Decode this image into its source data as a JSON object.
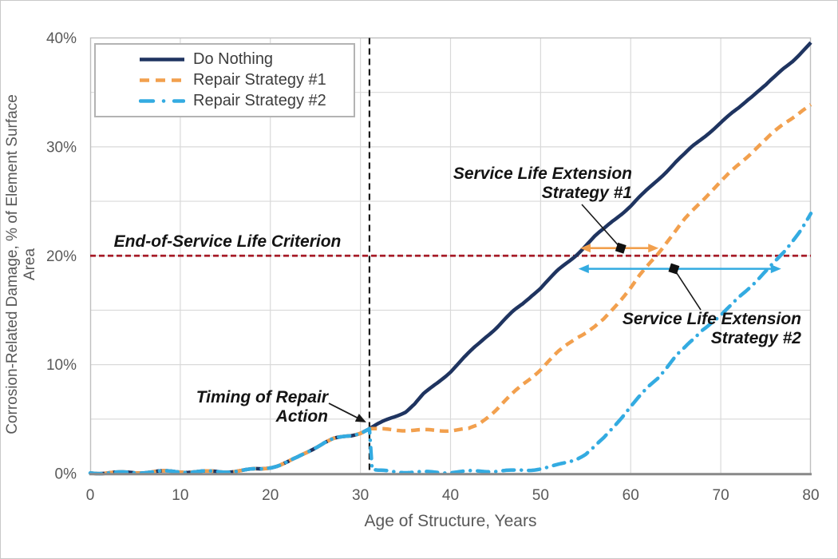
{
  "chart_data": {
    "type": "line",
    "xlabel": "Age of Structure, Years",
    "ylabel": "Corrosion-Related Damage, % of Element Surface Area",
    "xlim": [
      0,
      80
    ],
    "ylim": [
      0,
      40
    ],
    "xticks": [
      0,
      10,
      20,
      30,
      40,
      50,
      60,
      70,
      80
    ],
    "yticks": [
      [
        0,
        "0%"
      ],
      [
        10,
        "10%"
      ],
      [
        20,
        "20%"
      ],
      [
        30,
        "30%"
      ],
      [
        40,
        "40%"
      ]
    ],
    "grid": {
      "x_step_years": 10,
      "y_step_pct": 5
    },
    "legend_position": "top-left",
    "colors": {
      "grid": "#d9d9d9",
      "border": "#bfbfbf",
      "axis": "#8a8a8a",
      "tick_text": "#595959",
      "legend_text": "#3d3d3d",
      "annotation_text": "#141414",
      "background": "#ffffff"
    },
    "series": [
      {
        "name": "Do Nothing",
        "color": "#1f3460",
        "style": "solid",
        "points": [
          [
            0,
            0.1
          ],
          [
            3,
            0.1
          ],
          [
            6,
            0.12
          ],
          [
            9,
            0.15
          ],
          [
            12,
            0.18
          ],
          [
            15,
            0.22
          ],
          [
            17,
            0.28
          ],
          [
            19,
            0.4
          ],
          [
            20,
            0.55
          ],
          [
            21,
            0.75
          ],
          [
            22,
            1.05
          ],
          [
            23,
            1.45
          ],
          [
            24,
            1.95
          ],
          [
            25,
            2.45
          ],
          [
            26,
            2.9
          ],
          [
            27,
            3.2
          ],
          [
            28,
            3.35
          ],
          [
            29,
            3.5
          ],
          [
            30,
            3.75
          ],
          [
            31,
            4.1
          ],
          [
            33,
            4.9
          ],
          [
            35,
            5.7
          ],
          [
            36,
            6.4
          ],
          [
            37,
            7.3
          ],
          [
            38,
            8.0
          ],
          [
            39,
            8.7
          ],
          [
            40,
            9.4
          ],
          [
            41,
            10.2
          ],
          [
            42,
            11.0
          ],
          [
            43,
            11.8
          ],
          [
            44,
            12.6
          ],
          [
            45,
            13.3
          ],
          [
            46,
            14.1
          ],
          [
            47,
            14.9
          ],
          [
            48,
            15.6
          ],
          [
            49,
            16.4
          ],
          [
            50,
            17.1
          ],
          [
            51,
            17.9
          ],
          [
            52,
            18.7
          ],
          [
            53,
            19.4
          ],
          [
            54,
            20.1
          ],
          [
            55,
            20.9
          ],
          [
            56,
            21.7
          ],
          [
            57,
            22.4
          ],
          [
            58,
            23.2
          ],
          [
            59,
            23.9
          ],
          [
            60,
            24.6
          ],
          [
            61,
            25.4
          ],
          [
            62,
            26.2
          ],
          [
            63,
            27.0
          ],
          [
            64,
            27.8
          ],
          [
            65,
            28.6
          ],
          [
            66,
            29.3
          ],
          [
            67,
            30.1
          ],
          [
            68,
            30.8
          ],
          [
            69,
            31.5
          ],
          [
            70,
            32.2
          ],
          [
            71,
            32.9
          ],
          [
            72,
            33.6
          ],
          [
            73,
            34.4
          ],
          [
            74,
            35.1
          ],
          [
            75,
            35.7
          ],
          [
            76,
            36.4
          ],
          [
            77,
            37.2
          ],
          [
            78,
            37.9
          ],
          [
            79,
            38.7
          ],
          [
            80,
            39.5
          ]
        ]
      },
      {
        "name": "Repair Strategy #1",
        "color": "#f2a04e",
        "style": "dashed",
        "points": [
          [
            0,
            0.1
          ],
          [
            3,
            0.1
          ],
          [
            6,
            0.12
          ],
          [
            9,
            0.15
          ],
          [
            12,
            0.18
          ],
          [
            15,
            0.22
          ],
          [
            17,
            0.28
          ],
          [
            19,
            0.4
          ],
          [
            20,
            0.55
          ],
          [
            21,
            0.75
          ],
          [
            22,
            1.05
          ],
          [
            23,
            1.45
          ],
          [
            24,
            1.95
          ],
          [
            25,
            2.45
          ],
          [
            26,
            2.9
          ],
          [
            27,
            3.2
          ],
          [
            28,
            3.35
          ],
          [
            29,
            3.5
          ],
          [
            30,
            3.75
          ],
          [
            31,
            4.1
          ],
          [
            32,
            4.0
          ],
          [
            36,
            4.0
          ],
          [
            40,
            4.0
          ],
          [
            42,
            4.05
          ],
          [
            43,
            4.4
          ],
          [
            44,
            5.1
          ],
          [
            45,
            5.8
          ],
          [
            46,
            6.6
          ],
          [
            47,
            7.4
          ],
          [
            48,
            8.2
          ],
          [
            49,
            8.9
          ],
          [
            50,
            9.6
          ],
          [
            51,
            10.4
          ],
          [
            52,
            11.2
          ],
          [
            53,
            11.9
          ],
          [
            54,
            12.5
          ],
          [
            55,
            12.9
          ],
          [
            56,
            13.4
          ],
          [
            57,
            14.1
          ],
          [
            58,
            15.1
          ],
          [
            59,
            16.1
          ],
          [
            60,
            17.1
          ],
          [
            61,
            18.2
          ],
          [
            62,
            19.2
          ],
          [
            63,
            20.2
          ],
          [
            64,
            21.3
          ],
          [
            65,
            22.3
          ],
          [
            66,
            23.3
          ],
          [
            67,
            24.2
          ],
          [
            68,
            25.1
          ],
          [
            69,
            26.0
          ],
          [
            70,
            26.8
          ],
          [
            71,
            27.6
          ],
          [
            72,
            28.4
          ],
          [
            73,
            29.2
          ],
          [
            74,
            30.0
          ],
          [
            75,
            30.7
          ],
          [
            76,
            31.4
          ],
          [
            77,
            32.1
          ],
          [
            78,
            32.7
          ],
          [
            79,
            33.3
          ],
          [
            80,
            33.8
          ]
        ]
      },
      {
        "name": "Repair Strategy #2",
        "color": "#33abe1",
        "style": "dashdot",
        "points": [
          [
            0,
            0.1
          ],
          [
            3,
            0.1
          ],
          [
            6,
            0.12
          ],
          [
            9,
            0.15
          ],
          [
            12,
            0.18
          ],
          [
            15,
            0.22
          ],
          [
            17,
            0.28
          ],
          [
            19,
            0.4
          ],
          [
            20,
            0.55
          ],
          [
            21,
            0.75
          ],
          [
            22,
            1.05
          ],
          [
            23,
            1.45
          ],
          [
            24,
            1.95
          ],
          [
            25,
            2.45
          ],
          [
            26,
            2.9
          ],
          [
            27,
            3.2
          ],
          [
            28,
            3.35
          ],
          [
            29,
            3.5
          ],
          [
            30,
            3.75
          ],
          [
            31,
            4.1
          ],
          [
            31.3,
            0.3
          ],
          [
            32,
            0.2
          ],
          [
            35,
            0.15
          ],
          [
            38,
            0.15
          ],
          [
            41,
            0.15
          ],
          [
            44,
            0.2
          ],
          [
            47,
            0.25
          ],
          [
            49,
            0.4
          ],
          [
            51,
            0.6
          ],
          [
            52,
            0.8
          ],
          [
            53,
            1.05
          ],
          [
            54,
            1.35
          ],
          [
            55,
            1.75
          ],
          [
            56,
            2.4
          ],
          [
            57,
            3.2
          ],
          [
            58,
            4.2
          ],
          [
            59,
            5.2
          ],
          [
            60,
            6.2
          ],
          [
            61,
            7.1
          ],
          [
            62,
            8.0
          ],
          [
            63,
            8.8
          ],
          [
            64,
            9.8
          ],
          [
            65,
            10.8
          ],
          [
            66,
            11.5
          ],
          [
            67,
            12.3
          ],
          [
            68,
            13.2
          ],
          [
            69,
            13.9
          ],
          [
            70,
            14.5
          ],
          [
            71,
            15.3
          ],
          [
            72,
            16.2
          ],
          [
            73,
            17.0
          ],
          [
            74,
            17.8
          ],
          [
            75,
            18.6
          ],
          [
            76,
            19.4
          ],
          [
            77,
            20.3
          ],
          [
            78,
            21.4
          ],
          [
            79,
            22.5
          ],
          [
            80,
            23.8
          ]
        ]
      }
    ],
    "reference_lines": {
      "eol": {
        "value_pct": 20,
        "color": "#a61c28",
        "label": "End-of-Service Life Criterion"
      },
      "repair_time": {
        "value_year": 31,
        "color": "#1a1a1a",
        "label": "Timing of Repair Action"
      }
    },
    "annotations": {
      "eol": {
        "text": "End-of-Service Life Criterion"
      },
      "sle1": {
        "line1": "Service Life Extension",
        "line2": "Strategy #1",
        "arrow": {
          "from_year": 54.4,
          "to_year": 63.1,
          "at_pct": 20.7,
          "color": "#f2a04e"
        },
        "marker": {
          "year": 58.9,
          "pct": 20.7
        }
      },
      "sle2": {
        "line1": "Service Life Extension",
        "line2": "Strategy #2",
        "arrow": {
          "from_year": 54.2,
          "to_year": 76.7,
          "at_pct": 18.8,
          "color": "#33abe1"
        },
        "marker": {
          "year": 64.8,
          "pct": 18.8
        }
      },
      "timing": {
        "line1": "Timing of Repair",
        "line2": "Action",
        "target": {
          "year": 31,
          "pct": 4.7
        }
      }
    }
  }
}
